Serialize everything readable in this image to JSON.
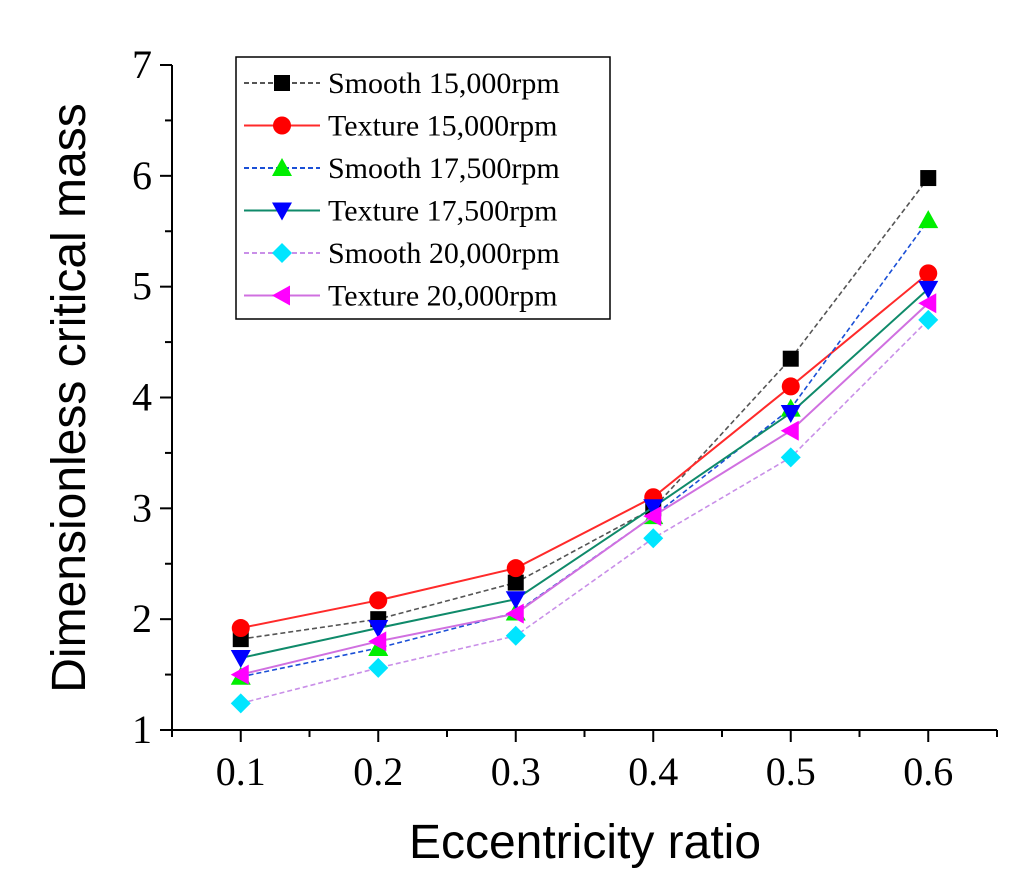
{
  "chart_data": {
    "type": "line",
    "xlabel": "Eccentricity ratio",
    "ylabel": "Dimensionless critical mass",
    "x": [
      0.1,
      0.2,
      0.3,
      0.4,
      0.5,
      0.6
    ],
    "x_tick_labels": [
      "0.1",
      "0.2",
      "0.3",
      "0.4",
      "0.5",
      "0.6"
    ],
    "xlim": [
      0.05,
      0.65
    ],
    "ylim": [
      1,
      7
    ],
    "y_ticks": [
      1,
      2,
      3,
      4,
      5,
      6,
      7
    ],
    "y_tick_labels": [
      "1",
      "2",
      "3",
      "4",
      "5",
      "6",
      "7"
    ],
    "legend_position": "top-left",
    "grid": false,
    "series": [
      {
        "name": "Smooth 15,000rpm",
        "color": "#555555",
        "marker_color": "#000000",
        "marker": "square",
        "dash": "dashed",
        "values": [
          1.82,
          2.0,
          2.33,
          3.0,
          4.35,
          5.98
        ]
      },
      {
        "name": "Texture 15,000rpm",
        "color": "#ff2a2a",
        "marker_color": "#ff0000",
        "marker": "circle",
        "dash": "solid",
        "values": [
          1.92,
          2.17,
          2.46,
          3.1,
          4.1,
          5.12
        ]
      },
      {
        "name": "Smooth 17,500rpm",
        "color": "#1a4fd6",
        "marker_color": "#00ee00",
        "marker": "triangle-up",
        "dash": "dashed",
        "values": [
          1.48,
          1.74,
          2.06,
          2.93,
          3.9,
          5.6
        ]
      },
      {
        "name": "Texture 17,500rpm",
        "color": "#0f8a6a",
        "marker_color": "#0000ff",
        "marker": "triangle-down",
        "dash": "solid",
        "values": [
          1.65,
          1.92,
          2.18,
          3.01,
          3.86,
          4.98
        ]
      },
      {
        "name": "Smooth 20,000rpm",
        "color": "#c98fe8",
        "marker_color": "#00e5ff",
        "marker": "diamond",
        "dash": "dashed",
        "values": [
          1.24,
          1.56,
          1.85,
          2.73,
          3.46,
          4.7
        ]
      },
      {
        "name": "Texture 20,000rpm",
        "color": "#d070e0",
        "marker_color": "#ff00ff",
        "marker": "triangle-left",
        "dash": "solid",
        "values": [
          1.5,
          1.8,
          2.05,
          2.93,
          3.7,
          4.85
        ]
      }
    ]
  }
}
